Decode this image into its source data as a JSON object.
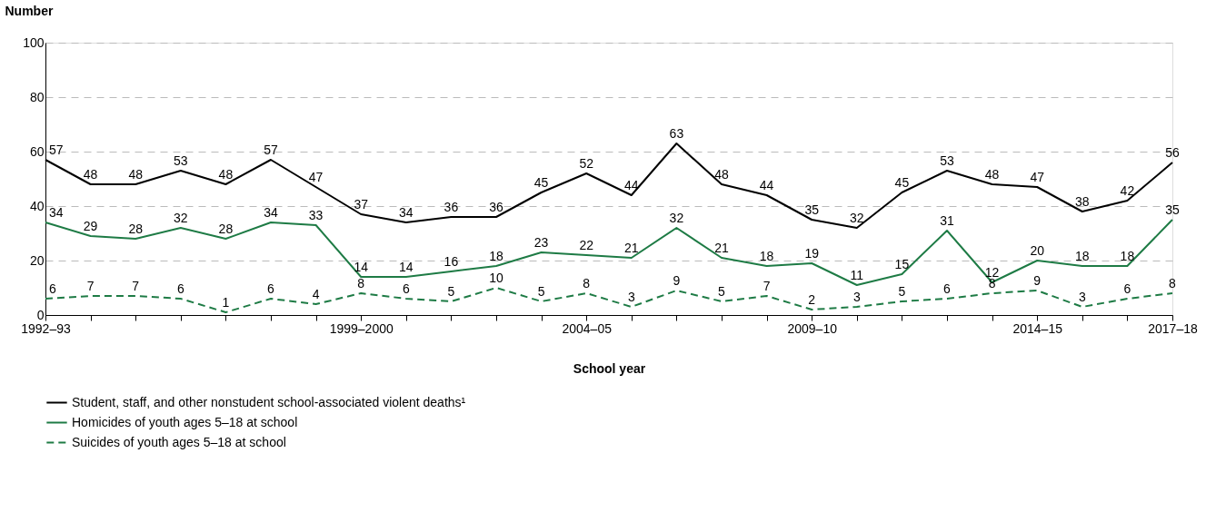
{
  "chart_data": {
    "type": "line",
    "xlabel": "School year",
    "ylabel": "Number",
    "categories": [
      "1992–93",
      null,
      null,
      null,
      null,
      null,
      null,
      "1999–2000",
      null,
      null,
      null,
      null,
      "2004–05",
      null,
      null,
      null,
      null,
      "2009–10",
      null,
      null,
      null,
      null,
      "2014–15",
      null,
      null,
      "2017–18"
    ],
    "series": [
      {
        "name": "Student, staff, and other nonstudent school-associated violent deaths¹",
        "color": "#000000",
        "line_style": "solid",
        "values": [
          57,
          48,
          48,
          53,
          48,
          57,
          47,
          37,
          34,
          36,
          36,
          45,
          52,
          44,
          63,
          48,
          44,
          35,
          32,
          45,
          53,
          48,
          47,
          38,
          42,
          56
        ]
      },
      {
        "name": "Homicides of youth ages 5–18 at school",
        "color": "#1e7b45",
        "line_style": "solid",
        "values": [
          34,
          29,
          28,
          32,
          28,
          34,
          33,
          14,
          14,
          16,
          18,
          23,
          22,
          21,
          32,
          21,
          18,
          19,
          11,
          15,
          31,
          12,
          20,
          18,
          18,
          35
        ]
      },
      {
        "name": "Suicides of youth ages 5–18 at school",
        "color": "#1e7b45",
        "line_style": "dashed",
        "values": [
          6,
          7,
          7,
          6,
          1,
          6,
          4,
          8,
          6,
          5,
          10,
          5,
          8,
          3,
          9,
          5,
          7,
          2,
          3,
          5,
          6,
          8,
          9,
          3,
          6,
          8
        ]
      }
    ],
    "ylim": [
      0,
      100
    ],
    "yticks": [
      0,
      20,
      40,
      60,
      80,
      100
    ],
    "grid": "y",
    "legend": "bottom",
    "data_labels": true
  }
}
